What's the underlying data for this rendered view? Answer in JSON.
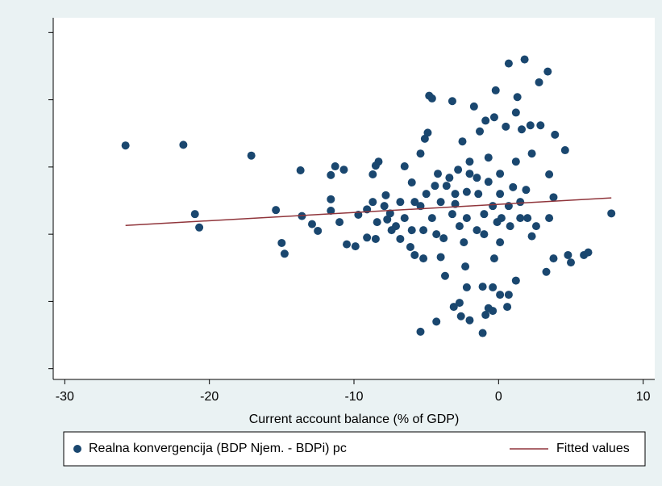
{
  "chart_data": {
    "type": "scatter",
    "x_label": "Current account balance (% of GDP)",
    "xlim": [
      -30.8,
      10.8
    ],
    "xticks": [
      -30,
      -20,
      -10,
      0,
      10
    ],
    "ylim": [
      -0.16,
      5.22
    ],
    "yticks": [
      0,
      1,
      2,
      3,
      4,
      5
    ],
    "ytick_labels": false,
    "legend": "bottom",
    "series": [
      {
        "name": "Realna konvergencija (BDP Njem. - BDPi) pc",
        "type": "scatter",
        "color": "#1a476f",
        "x": [
          -25.8,
          -21.8,
          -17.1,
          -21.0,
          -20.7,
          -15.4,
          -15.0,
          -14.8,
          -13.7,
          -13.6,
          -12.9,
          -12.5,
          -11.6,
          -11.3,
          -10.7,
          -11.6,
          -11.6,
          -11.0,
          -10.5,
          -9.9,
          -9.7,
          -8.7,
          -8.3,
          -8.5,
          -9.1,
          -8.7,
          -8.4,
          -9.1,
          -8.5,
          -7.8,
          -7.5,
          -7.1,
          -6.8,
          -6.5,
          -6.0,
          -6.1,
          -5.8,
          -5.4,
          -4.9,
          -5.1,
          -4.8,
          -4.6,
          -5.4,
          -4.3,
          -5.2,
          -4.0,
          -3.7,
          -3.4,
          -3.2,
          -3.0,
          -2.7,
          -2.3,
          -2.2,
          -2.0,
          -1.7,
          -1.3,
          -0.9,
          -1.1,
          -2.2,
          -3.1,
          -2.7,
          -2.6,
          -2.0,
          -1.1,
          -0.9,
          -0.7,
          -0.4,
          -0.2,
          -0.3,
          0.5,
          0.7,
          1.8,
          1.3,
          1.2,
          1.6,
          2.2,
          2.8,
          3.4,
          2.9,
          3.9,
          4.6,
          3.5,
          3.8,
          3.3,
          3.8,
          4.8,
          5.0,
          5.9,
          6.2,
          7.8,
          1.2,
          0.6,
          0.7,
          0.1,
          -0.4,
          0.2,
          0.8,
          1.5,
          2.3,
          2.6,
          1.9,
          1.0,
          0.1,
          -0.7,
          -0.4,
          -1.0,
          -1.5,
          -2.4,
          -3.2,
          -4.0,
          -4.6,
          -5.4,
          -6.0,
          -5.2,
          -4.3,
          -3.8,
          -6.8,
          -6.5,
          -7.4,
          -7.9,
          -7.7,
          -1.5,
          -0.7,
          0.1,
          1.2,
          2.3,
          1.5,
          0.7,
          -0.1,
          -1.0,
          -2.2,
          -3.0,
          -3.6,
          -4.2,
          -4.4,
          -5.0,
          -5.8,
          -2.8,
          -2.5,
          -2.0,
          -1.4,
          0.1,
          2.0,
          3.5,
          -0.3
        ],
        "values": [
          3.32,
          3.33,
          3.17,
          2.3,
          2.1,
          2.36,
          1.87,
          1.71,
          2.95,
          2.27,
          2.15,
          2.05,
          2.88,
          3.01,
          2.96,
          2.52,
          2.35,
          2.18,
          1.85,
          1.82,
          2.29,
          2.89,
          3.08,
          3.02,
          2.37,
          2.48,
          2.18,
          1.95,
          1.93,
          2.58,
          2.31,
          2.12,
          1.93,
          3.01,
          2.77,
          1.81,
          1.69,
          3.2,
          3.51,
          3.42,
          4.06,
          4.02,
          0.55,
          0.7,
          1.64,
          1.66,
          1.38,
          2.84,
          3.98,
          2.45,
          2.12,
          1.52,
          2.63,
          3.08,
          3.9,
          3.53,
          3.69,
          1.22,
          1.21,
          0.92,
          0.98,
          0.78,
          0.72,
          0.53,
          0.8,
          0.9,
          1.21,
          4.14,
          3.74,
          3.6,
          4.54,
          4.6,
          4.04,
          3.81,
          3.56,
          3.62,
          4.26,
          4.42,
          3.62,
          3.48,
          3.25,
          2.89,
          2.55,
          1.44,
          1.64,
          1.69,
          1.58,
          1.69,
          1.73,
          2.31,
          1.31,
          0.92,
          1.1,
          1.1,
          0.86,
          2.24,
          2.12,
          2.24,
          1.97,
          2.12,
          2.66,
          2.7,
          2.6,
          2.78,
          2.42,
          2.3,
          2.06,
          1.88,
          2.3,
          2.48,
          2.24,
          2.42,
          2.06,
          2.06,
          2.0,
          1.94,
          2.48,
          2.24,
          2.06,
          2.42,
          2.22,
          2.84,
          3.14,
          2.9,
          3.08,
          3.2,
          2.48,
          2.42,
          2.18,
          2.0,
          2.24,
          2.6,
          2.72,
          2.9,
          2.72,
          2.6,
          2.48,
          2.96,
          3.38,
          2.9,
          2.6,
          1.88,
          2.24,
          2.24,
          1.64
        ]
      },
      {
        "name": "Fitted values",
        "type": "line",
        "color": "#90353b",
        "x": [
          -25.8,
          7.8
        ],
        "values": [
          2.13,
          2.54
        ]
      }
    ]
  }
}
